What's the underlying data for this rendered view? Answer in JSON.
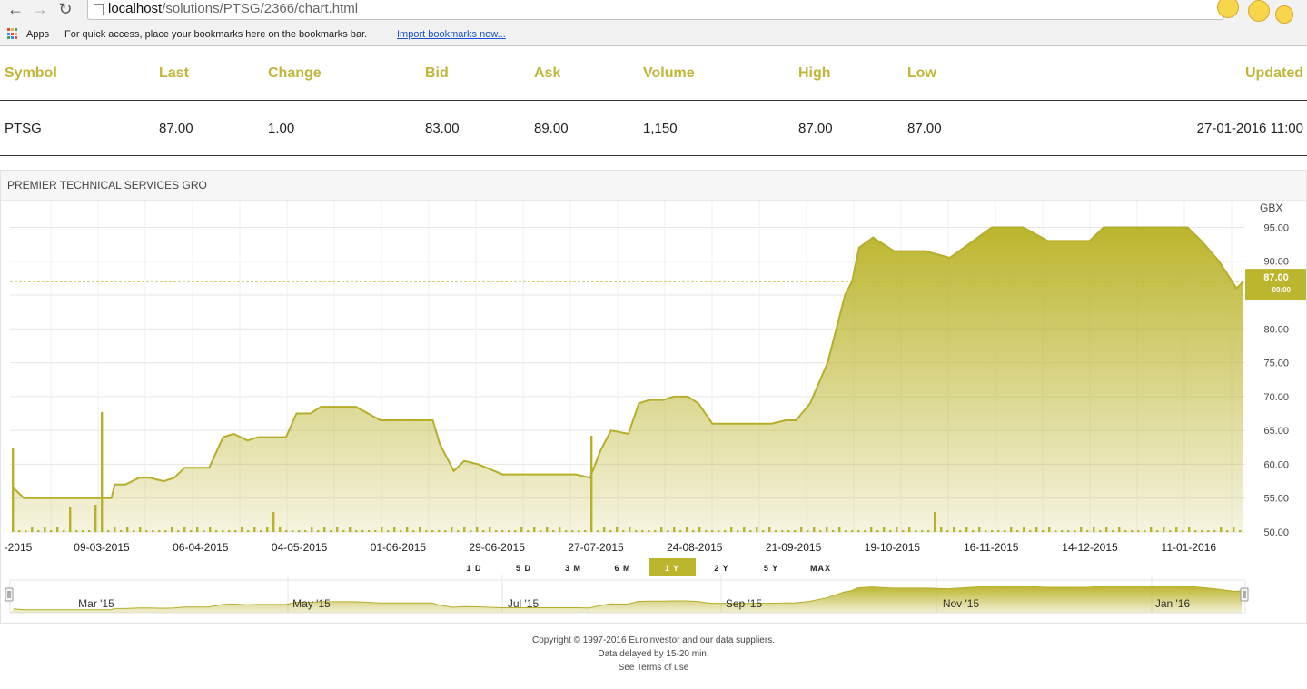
{
  "browser": {
    "url_host": "localhost",
    "url_path": "/solutions/PTSG/2366/chart.html",
    "bookmarks_apps": "Apps",
    "bookmarks_hint": "For quick access, place your bookmarks here on the bookmarks bar.",
    "bookmarks_import": "Import bookmarks now..."
  },
  "quote_table": {
    "headers": [
      "Symbol",
      "Last",
      "Change",
      "Bid",
      "Ask",
      "Volume",
      "High",
      "Low",
      "Updated"
    ],
    "row": [
      "PTSG",
      "87.00",
      "1.00",
      "83.00",
      "89.00",
      "1,150",
      "87.00",
      "87.00",
      "27-01-2016 11:00"
    ]
  },
  "chart_panel": {
    "title": "PREMIER TECHNICAL SERVICES GRO",
    "currency": "GBX",
    "last_price_label": "87.00",
    "last_time_label": "09:00",
    "range_buttons": [
      "1 D",
      "5 D",
      "3 M",
      "6 M",
      "1 Y",
      "2 Y",
      "5 Y",
      "MAX"
    ],
    "active_range": "1 Y",
    "navigator_labels": [
      "Mar '15",
      "May '15",
      "Jul '15",
      "Sep '15",
      "Nov '15",
      "Jan '16"
    ]
  },
  "chart_data": {
    "type": "area",
    "ylabel": "GBX",
    "ylim": [
      50,
      96
    ],
    "y_ticks": [
      "50.00",
      "55.00",
      "60.00",
      "65.00",
      "70.00",
      "75.00",
      "80.00",
      "85.00",
      "90.00",
      "95.00"
    ],
    "x_ticks": [
      "-2015",
      "09-03-2015",
      "06-04-2015",
      "04-05-2015",
      "01-06-2015",
      "29-06-2015",
      "27-07-2015",
      "24-08-2015",
      "21-09-2015",
      "19-10-2015",
      "16-11-2015",
      "14-12-2015",
      "11-01-2016"
    ],
    "last_price": 87.0,
    "series": [
      {
        "x": [
          "09-02-2015",
          "12-02-2015",
          "16-02-2015",
          "09-03-2015",
          "10-03-2015",
          "13-03-2015",
          "17-03-2015",
          "20-03-2015",
          "24-03-2015",
          "27-03-2015",
          "30-03-2015",
          "06-04-2015",
          "10-04-2015",
          "13-04-2015",
          "17-04-2015",
          "20-04-2015",
          "24-04-2015",
          "28-04-2015",
          "01-05-2015",
          "05-05-2015",
          "08-05-2015",
          "13-05-2015",
          "18-05-2015",
          "25-05-2015",
          "01-06-2015",
          "09-06-2015",
          "11-06-2015",
          "15-06-2015",
          "18-06-2015",
          "22-06-2015",
          "29-06-2015",
          "07-07-2015",
          "15-07-2015",
          "20-07-2015",
          "24-07-2015",
          "27-07-2015",
          "30-07-2015",
          "04-08-2015",
          "07-08-2015",
          "10-08-2015",
          "14-08-2015",
          "17-08-2015",
          "21-08-2015",
          "24-08-2015",
          "28-08-2015",
          "14-09-2015",
          "18-09-2015",
          "21-09-2015",
          "25-09-2015",
          "30-09-2015",
          "05-10-2015",
          "07-10-2015",
          "09-10-2015",
          "13-10-2015",
          "19-10-2015",
          "23-10-2015",
          "28-10-2015",
          "04-11-2015",
          "16-11-2015",
          "20-11-2015",
          "25-11-2015",
          "02-12-2015",
          "14-12-2015",
          "18-12-2015",
          "28-12-2015",
          "11-01-2016",
          "15-01-2016",
          "20-01-2016",
          "25-01-2016",
          "27-01-2016"
        ],
        "y": [
          56.5,
          55.0,
          55.0,
          55.0,
          57.0,
          57.0,
          58.0,
          58.0,
          57.5,
          58.0,
          59.5,
          59.5,
          64.0,
          64.5,
          63.5,
          64.0,
          64.0,
          64.0,
          67.5,
          67.5,
          68.5,
          68.5,
          68.5,
          66.5,
          66.5,
          66.5,
          63.0,
          59.0,
          60.5,
          60.0,
          58.5,
          58.5,
          58.5,
          58.5,
          58.0,
          62.0,
          65.0,
          64.5,
          69.0,
          69.5,
          69.5,
          70.0,
          70.0,
          69.0,
          66.0,
          66.0,
          66.5,
          66.5,
          69.0,
          75.0,
          85.0,
          87.0,
          92.0,
          93.5,
          91.5,
          91.5,
          91.5,
          90.5,
          95.0,
          95.0,
          95.0,
          93.0,
          93.0,
          95.0,
          95.0,
          95.0,
          93.0,
          90.0,
          86.0,
          87.0
        ]
      }
    ]
  }
}
